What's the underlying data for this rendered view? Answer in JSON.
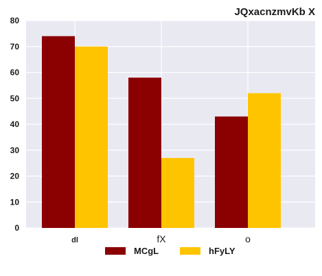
{
  "chart_data": {
    "type": "bar",
    "title": "JQxacnzmvKb  X",
    "categories": [
      "dl",
      "fX",
      "o"
    ],
    "series": [
      {
        "name": "MCgL",
        "color": "#8b0000",
        "values": [
          74,
          58,
          43
        ]
      },
      {
        "name": "hFyLY",
        "color": "#ffc400",
        "values": [
          70,
          27,
          52
        ]
      }
    ],
    "xlabel": "",
    "ylabel": "",
    "ylim": [
      0,
      80
    ],
    "yticks": [
      0,
      10,
      20,
      30,
      40,
      50,
      60,
      70,
      80
    ],
    "grid": true,
    "legend_position": "bottom-center"
  }
}
